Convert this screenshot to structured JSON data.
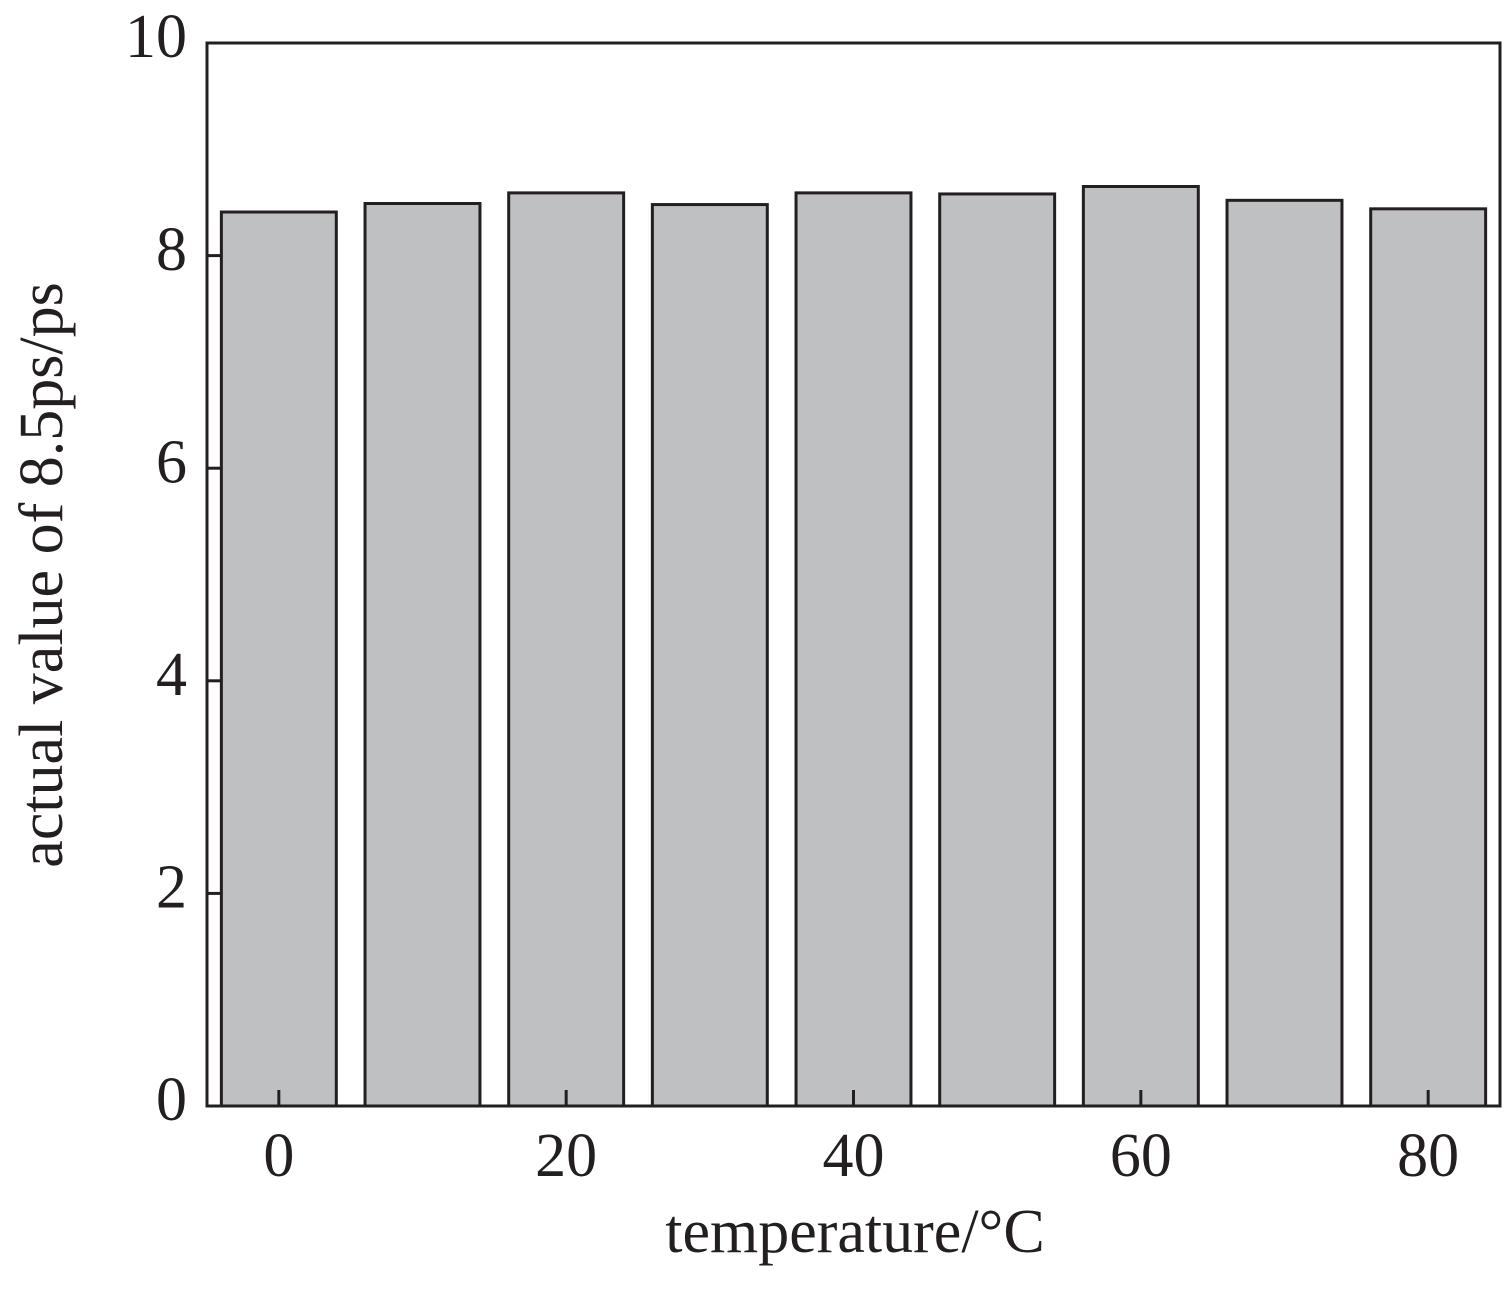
{
  "chart_data": {
    "type": "bar",
    "xlabel": "temperature/°C",
    "ylabel": "actual value of 8.5ps/ps",
    "x": [
      0,
      10,
      20,
      30,
      40,
      50,
      60,
      70,
      80
    ],
    "values": [
      8.41,
      8.49,
      8.59,
      8.48,
      8.59,
      8.58,
      8.65,
      8.52,
      8.44
    ],
    "color": "#bfc0c2",
    "xlim": [
      -5,
      85
    ],
    "xticks": [
      0,
      20,
      40,
      60,
      80
    ],
    "ylim": [
      0,
      10
    ],
    "yticks": [
      0,
      2,
      4,
      6,
      8,
      10
    ]
  }
}
